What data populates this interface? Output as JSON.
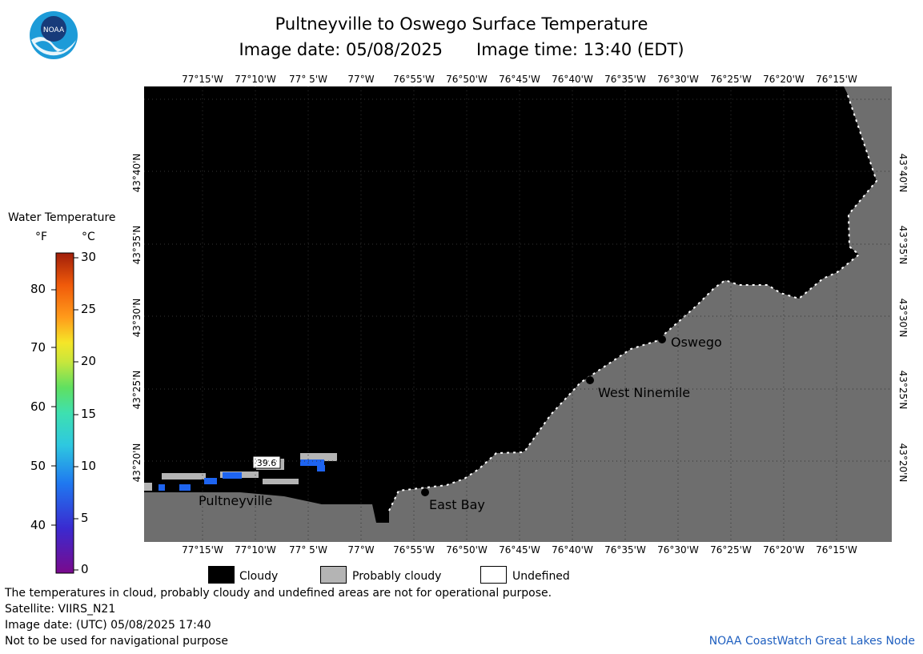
{
  "title": "Pultneyville to Oswego Surface Temperature",
  "image_date_label": "Image date: 05/08/2025",
  "image_time_label": "Image time: 13:40 (EDT)",
  "logo": {
    "name": "noaa-logo",
    "text": "NOAA"
  },
  "colorbar": {
    "title": "Water Temperature",
    "unit_f": "°F",
    "unit_c": "°C",
    "f_ticks": [
      "80",
      "70",
      "60",
      "50",
      "40"
    ],
    "c_ticks": [
      "30",
      "25",
      "20",
      "15",
      "10",
      "5",
      "0"
    ]
  },
  "map": {
    "lon_labels": [
      "77°15'W",
      "77°10'W",
      "77° 5'W",
      "77°W",
      "76°55'W",
      "76°50'W",
      "76°45'W",
      "76°40'W",
      "76°35'W",
      "76°30'W",
      "76°25'W",
      "76°20'W",
      "76°15'W"
    ],
    "lat_labels": [
      "43°40'N",
      "43°35'N",
      "43°30'N",
      "43°25'N",
      "43°20'N"
    ],
    "places": {
      "oswego": "Oswego",
      "west_ninemile": "West Ninemile",
      "east_bay": "East Bay",
      "pultneyville": "Pultneyville"
    },
    "temp_label": "39.6",
    "colors": {
      "cloudy": "#000000",
      "land": "#6e6e6e",
      "probably_cloudy": "#b4b4b4",
      "water_cold": "#1e64f0"
    }
  },
  "legend": {
    "cloudy": "Cloudy",
    "probably_cloudy": "Probably cloudy",
    "undefined": "Undefined"
  },
  "footer": {
    "note": "The temperatures in cloud, probably cloudy and undefined areas are not for operational purpose.",
    "satellite": "Satellite: VIIRS_N21",
    "utc_date": "Image date: (UTC) 05/08/2025  17:40",
    "nav_warning": "Not to be used for navigational purpose",
    "credit": "NOAA CoastWatch Great Lakes Node"
  }
}
